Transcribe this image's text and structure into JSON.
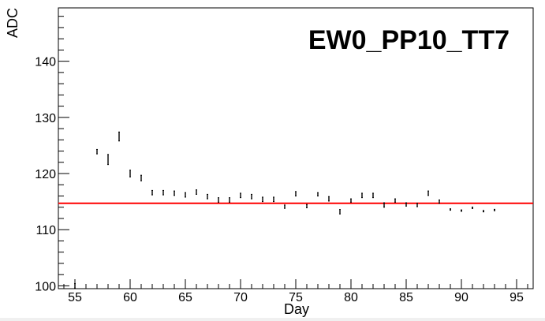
{
  "chart_data": {
    "type": "scatter",
    "title": "EW0_PP10_TT7",
    "xlabel": "Day",
    "ylabel": "ADC",
    "xlim": [
      53.5,
      96.5
    ],
    "ylim": [
      99.5,
      149.5
    ],
    "xticks": [
      55,
      60,
      65,
      70,
      75,
      80,
      85,
      90,
      95
    ],
    "yticks": [
      100,
      110,
      120,
      130,
      140
    ],
    "reference_line": {
      "y": 114.7,
      "color": "#ff0000"
    },
    "series": [
      {
        "points": [
          {
            "x": 55,
            "y": 100.0,
            "err": 0.4
          },
          {
            "x": 57,
            "y": 123.9,
            "err": 0.4
          },
          {
            "x": 58,
            "y": 122.5,
            "err": 0.9
          },
          {
            "x": 59,
            "y": 126.6,
            "err": 0.8
          },
          {
            "x": 60,
            "y": 120.0,
            "err": 0.6
          },
          {
            "x": 61,
            "y": 119.2,
            "err": 0.5
          },
          {
            "x": 62,
            "y": 116.6,
            "err": 0.4
          },
          {
            "x": 63,
            "y": 116.6,
            "err": 0.4
          },
          {
            "x": 64,
            "y": 116.5,
            "err": 0.4
          },
          {
            "x": 65,
            "y": 116.2,
            "err": 0.4
          },
          {
            "x": 66,
            "y": 116.7,
            "err": 0.4
          },
          {
            "x": 67,
            "y": 115.9,
            "err": 0.4
          },
          {
            "x": 68,
            "y": 115.3,
            "err": 0.4
          },
          {
            "x": 69,
            "y": 115.3,
            "err": 0.4
          },
          {
            "x": 70,
            "y": 116.1,
            "err": 0.4
          },
          {
            "x": 71,
            "y": 115.9,
            "err": 0.4
          },
          {
            "x": 72,
            "y": 115.4,
            "err": 0.4
          },
          {
            "x": 73,
            "y": 115.4,
            "err": 0.4
          },
          {
            "x": 74,
            "y": 114.1,
            "err": 0.3
          },
          {
            "x": 75,
            "y": 116.4,
            "err": 0.4
          },
          {
            "x": 76,
            "y": 114.2,
            "err": 0.3
          },
          {
            "x": 77,
            "y": 116.3,
            "err": 0.3
          },
          {
            "x": 78,
            "y": 115.5,
            "err": 0.4
          },
          {
            "x": 79,
            "y": 113.2,
            "err": 0.4
          },
          {
            "x": 80,
            "y": 115.2,
            "err": 0.3
          },
          {
            "x": 81,
            "y": 116.1,
            "err": 0.4
          },
          {
            "x": 82,
            "y": 116.1,
            "err": 0.4
          },
          {
            "x": 83,
            "y": 114.4,
            "err": 0.4
          },
          {
            "x": 84,
            "y": 115.2,
            "err": 0.3
          },
          {
            "x": 85,
            "y": 114.5,
            "err": 0.3
          },
          {
            "x": 86,
            "y": 114.4,
            "err": 0.3
          },
          {
            "x": 87,
            "y": 116.5,
            "err": 0.4
          },
          {
            "x": 88,
            "y": 115.0,
            "err": 0.3
          },
          {
            "x": 89,
            "y": 113.6,
            "err": 0.1
          },
          {
            "x": 90,
            "y": 113.4,
            "err": 0.1
          },
          {
            "x": 91,
            "y": 113.9,
            "err": 0.1
          },
          {
            "x": 92,
            "y": 113.3,
            "err": 0.1
          },
          {
            "x": 93,
            "y": 113.5,
            "err": 0.1
          }
        ]
      }
    ],
    "grid": false,
    "legend": "none"
  }
}
